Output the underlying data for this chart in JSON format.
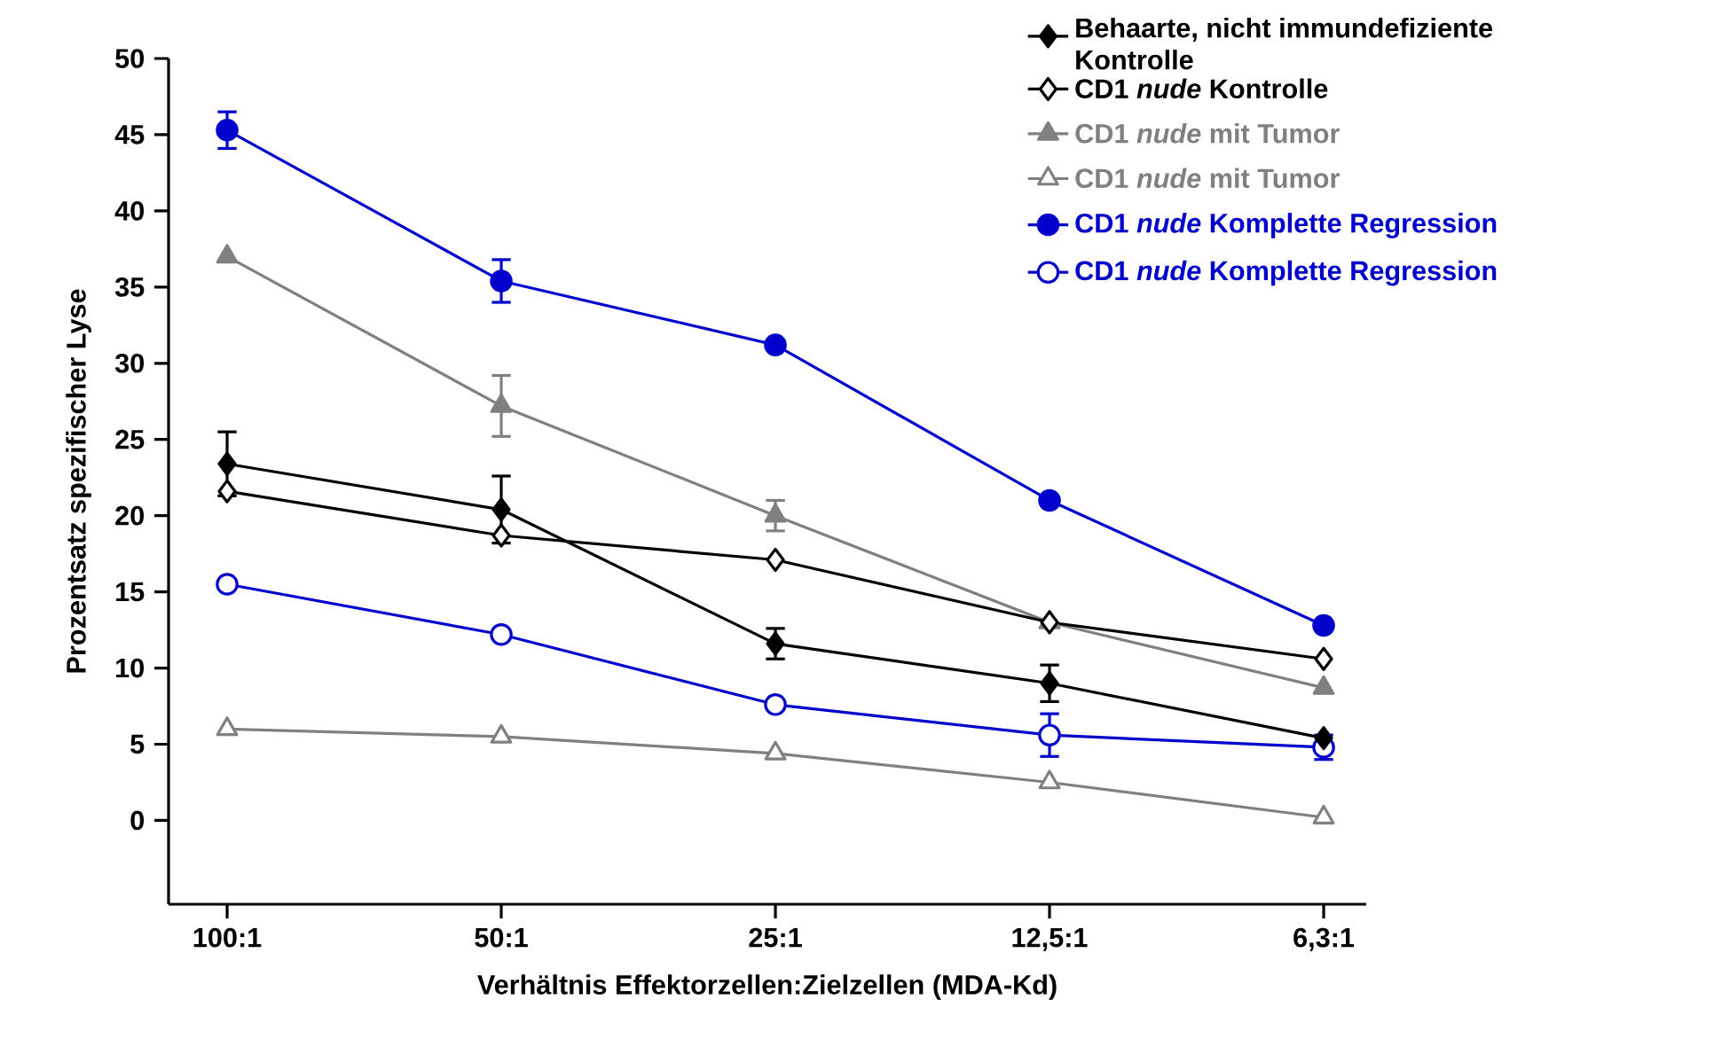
{
  "chart_data": {
    "type": "line",
    "xlabel": "Verhältnis Effektorzellen:Zielzellen (MDA-Kd)",
    "ylabel": "Prozentsatz spezifischer Lyse",
    "categories": [
      "100:1",
      "50:1",
      "25:1",
      "12,5:1",
      "6,3:1"
    ],
    "ylim": [
      -5.5,
      50
    ],
    "yticks": [
      0,
      5,
      10,
      15,
      20,
      25,
      30,
      35,
      40,
      45,
      50
    ],
    "legend": "top right",
    "line_style": "solid",
    "series": [
      {
        "name": "Behaarte, nicht immundefiziente Kontrolle",
        "color": "#000000",
        "marker": "diamond",
        "values": [
          23.4,
          20.4,
          11.6,
          9.0,
          5.4
        ],
        "errors": [
          2.1,
          2.2,
          1.0,
          1.2,
          null
        ]
      },
      {
        "name": "CD1 *nude* Kontrolle",
        "color": "#000000",
        "marker": "diamond-open",
        "values": [
          21.6,
          18.7,
          17.1,
          13.0,
          10.6
        ],
        "errors": [
          null,
          null,
          null,
          null,
          null
        ]
      },
      {
        "name": "CD1 *nude* mit Tumor",
        "color": "#808080",
        "marker": "triangle",
        "values": [
          37.0,
          27.2,
          20.0,
          13.0,
          8.7
        ],
        "errors": [
          null,
          2.0,
          1.0,
          null,
          null
        ]
      },
      {
        "name": "CD1 *nude* mit Tumor",
        "color": "#808080",
        "marker": "triangle-open",
        "values": [
          6.0,
          5.5,
          4.4,
          2.5,
          0.2
        ],
        "errors": [
          null,
          null,
          null,
          null,
          null
        ]
      },
      {
        "name": "CD1 *nude* Komplette Regression",
        "color": "#0000cc",
        "marker": "circle",
        "values": [
          45.3,
          35.4,
          31.2,
          21.0,
          12.8
        ],
        "errors": [
          1.2,
          1.4,
          null,
          null,
          null
        ]
      },
      {
        "name": "CD1 *nude* Komplette Regression",
        "color": "#0000cc",
        "marker": "circle-open",
        "values": [
          15.5,
          12.2,
          7.6,
          5.6,
          4.8
        ],
        "errors": [
          null,
          null,
          null,
          1.4,
          0.8
        ]
      }
    ]
  }
}
